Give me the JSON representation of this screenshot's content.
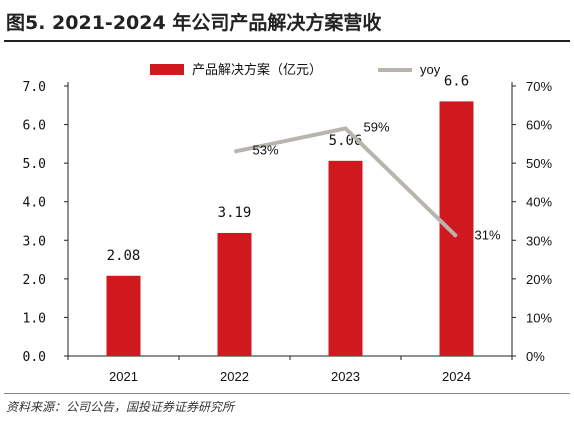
{
  "figure": {
    "title": "图5. 2021-2024 年公司产品解决方案营收",
    "source": "资料来源：公司公告，国投证券证券研究所"
  },
  "chart_data": {
    "type": "bar",
    "categories": [
      "2021",
      "2022",
      "2023",
      "2024"
    ],
    "series": [
      {
        "name": "产品解决方案（亿元）",
        "type": "bar",
        "axis": "left",
        "values": [
          2.08,
          3.19,
          5.06,
          6.6
        ],
        "labels": [
          "2.08",
          "3.19",
          "5.06",
          "6.6"
        ],
        "color": "#d0191f"
      },
      {
        "name": "yoy",
        "type": "line",
        "axis": "right",
        "values": [
          null,
          53,
          59,
          31
        ],
        "labels": [
          "",
          "53%",
          "59%",
          "31%"
        ],
        "color": "#b8b4ae"
      }
    ],
    "y_left": {
      "lim": [
        0,
        7
      ],
      "ticks": [
        "0.0",
        "1.0",
        "2.0",
        "3.0",
        "4.0",
        "5.0",
        "6.0",
        "7.0"
      ]
    },
    "y_right": {
      "lim": [
        0,
        70
      ],
      "ticks": [
        "0%",
        "10%",
        "20%",
        "30%",
        "40%",
        "50%",
        "60%",
        "70%"
      ]
    },
    "grid": false,
    "legend": "top-center"
  }
}
